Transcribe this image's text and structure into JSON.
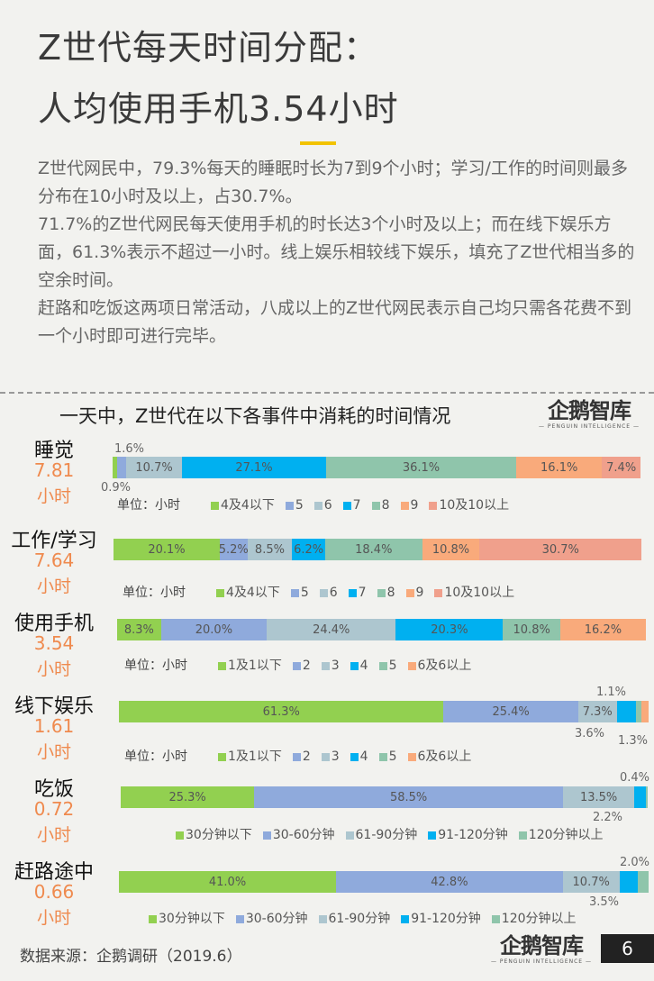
{
  "header": {
    "title_line1": "Z世代每天时间分配：",
    "title_line2": "人均使用手机3.54小时"
  },
  "body": [
    "Z世代网民中，79.3%每天的睡眠时长为7到9个小时；学习/工作的时间则最多分布在10小时及以上，占30.7%。",
    "71.7%的Z世代网民每天使用手机的时长达3个小时及以上；而在线下娱乐方面，61.3%表示不超过一小时。线上娱乐相较线下娱乐，填充了Z世代相当多的空余时间。",
    "赶路和吃饭这两项日常活动，八成以上的Z世代网民表示自己均只需各花费不到一个小时即可进行完毕。"
  ],
  "logo": {
    "text": "企鹅智库",
    "sub": "— PENGUIN INTELLIGENCE —"
  },
  "footer": {
    "source": "数据来源：企鹅调研（2019.6）",
    "page": "6"
  },
  "colors": [
    "#92d050",
    "#8faadc",
    "#adc6cf",
    "#00b0f0",
    "#8fc5ab",
    "#f9aa7b",
    "#f0a08c"
  ],
  "chart_data": [
    {
      "type": "bar",
      "stacked": "100%",
      "title": "一天中，Z世代在以下各事件中消耗的时间情况",
      "name": "睡觉",
      "average": "7.81",
      "unit": "小时",
      "unit_label": "单位：小时",
      "categories": [
        "4及4以下",
        "5",
        "6",
        "7",
        "8",
        "9",
        "10及10以上"
      ],
      "values": [
        0.9,
        1.6,
        10.7,
        27.1,
        36.1,
        16.1,
        7.4
      ]
    },
    {
      "type": "bar",
      "stacked": "100%",
      "name": "工作/学习",
      "average": "7.64",
      "unit": "小时",
      "unit_label": "单位：小时",
      "categories": [
        "4及4以下",
        "5",
        "6",
        "7",
        "8",
        "9",
        "10及10以上"
      ],
      "values": [
        20.1,
        5.2,
        8.5,
        6.2,
        18.4,
        10.8,
        30.7
      ]
    },
    {
      "type": "bar",
      "stacked": "100%",
      "name": "使用手机",
      "average": "3.54",
      "unit": "小时",
      "unit_label": "单位：小时",
      "categories": [
        "1及1以下",
        "2",
        "3",
        "4",
        "5",
        "6及6以上"
      ],
      "values": [
        8.3,
        20.0,
        24.4,
        20.3,
        10.8,
        16.2
      ]
    },
    {
      "type": "bar",
      "stacked": "100%",
      "name": "线下娱乐",
      "average": "1.61",
      "unit": "小时",
      "unit_label": "单位：小时",
      "categories": [
        "1及1以下",
        "2",
        "3",
        "4",
        "5",
        "6及6以上"
      ],
      "values": [
        61.3,
        25.4,
        7.3,
        3.6,
        1.1,
        1.3
      ]
    },
    {
      "type": "bar",
      "stacked": "100%",
      "name": "吃饭",
      "average": "0.72",
      "unit": "小时",
      "categories": [
        "30分钟以下",
        "30-60分钟",
        "61-90分钟",
        "91-120分钟",
        "120分钟以上"
      ],
      "values": [
        25.3,
        58.5,
        13.5,
        2.2,
        0.4
      ]
    },
    {
      "type": "bar",
      "stacked": "100%",
      "name": "赶路途中",
      "average": "0.66",
      "unit": "小时",
      "categories": [
        "30分钟以下",
        "30-60分钟",
        "61-90分钟",
        "91-120分钟",
        "120分钟以上"
      ],
      "values": [
        41.0,
        42.8,
        10.7,
        3.5,
        2.0
      ]
    }
  ]
}
